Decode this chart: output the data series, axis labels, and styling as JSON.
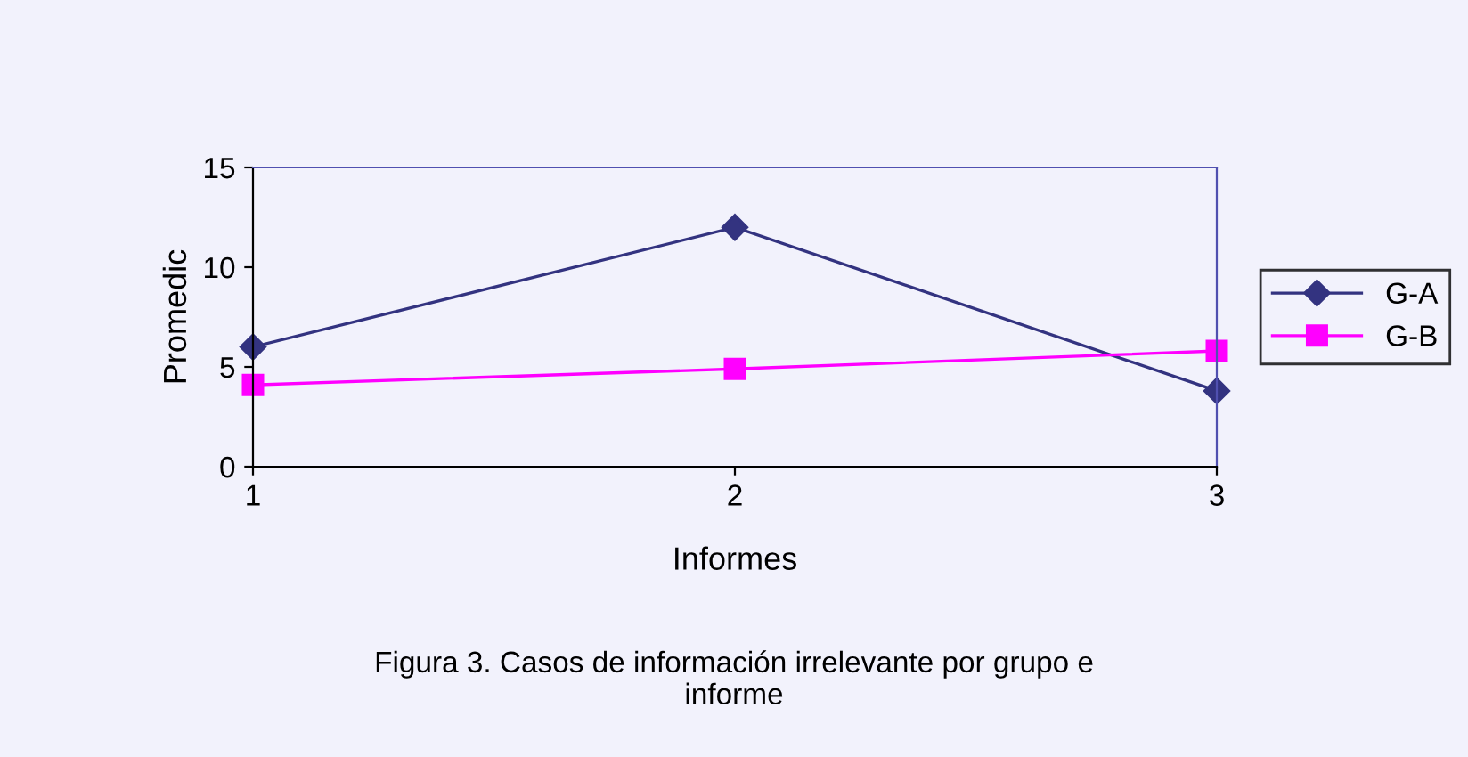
{
  "chart_data": {
    "type": "line",
    "xlabel": "Informes",
    "ylabel": "Promedic",
    "annotations": [
      "Figura 3. Casos de información irrelevante por grupo e\ninforme"
    ],
    "x": [
      1,
      2,
      3
    ],
    "xlim": [
      1,
      3
    ],
    "xticks": [
      1,
      2,
      3
    ],
    "ylim": [
      0,
      15
    ],
    "yticks": [
      0,
      5,
      10,
      15
    ],
    "series": [
      {
        "name": "G-A",
        "color": "#333380",
        "values": [
          6,
          12,
          3.8
        ],
        "marker": "diamond"
      },
      {
        "name": "G-B",
        "color": "#ff00ff",
        "values": [
          4.1,
          4.9,
          5.8
        ],
        "marker": "square"
      }
    ],
    "grid": false,
    "legend": "right",
    "line_style": "solid"
  }
}
